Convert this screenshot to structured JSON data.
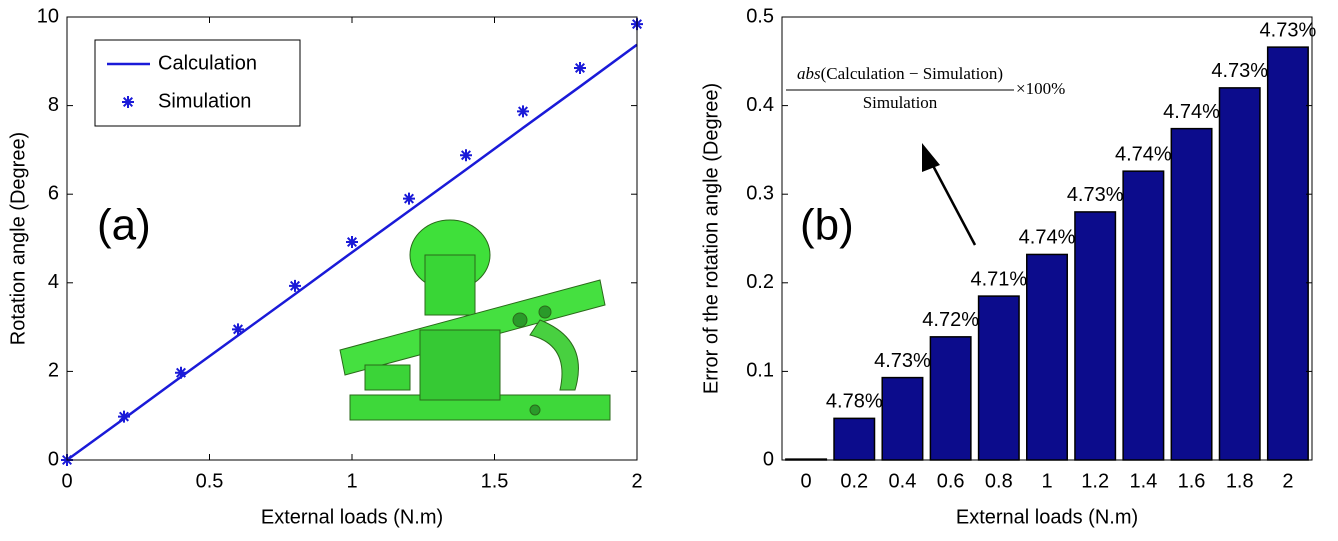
{
  "chart_data": [
    {
      "type": "line",
      "x_label": "External loads (N.m)",
      "y_label": "Rotation angle (Degree)",
      "annotation": "(a)",
      "x": [
        0,
        0.2,
        0.4,
        0.6,
        0.8,
        1,
        1.2,
        1.4,
        1.6,
        1.8,
        2
      ],
      "series": [
        {
          "name": "Calculation",
          "color": "#1a1ad8",
          "style": "line",
          "values": [
            0,
            0.933,
            1.877,
            2.811,
            3.745,
            4.688,
            5.62,
            6.554,
            7.496,
            8.43,
            9.374
          ]
        },
        {
          "name": "Simulation",
          "color": "#1a1ad8",
          "style": "star",
          "values": [
            0,
            0.98,
            1.97,
            2.95,
            3.93,
            4.92,
            5.9,
            6.88,
            7.87,
            8.85,
            9.84
          ]
        }
      ],
      "xlim": [
        0,
        2
      ],
      "xticks": [
        0,
        0.5,
        1,
        1.5,
        2
      ],
      "ylim": [
        0,
        10
      ],
      "yticks": [
        0,
        2,
        4,
        6,
        8,
        10
      ],
      "legend": "upper-left"
    },
    {
      "type": "bar",
      "x_label": "External loads (N.m)",
      "y_label": "Error of the rotation angle (Degree)",
      "annotation": "(b)",
      "categories": [
        "0",
        "0.2",
        "0.4",
        "0.6",
        "0.8",
        "1",
        "1.2",
        "1.4",
        "1.6",
        "1.8",
        "2"
      ],
      "values": [
        0.001,
        0.047,
        0.093,
        0.139,
        0.185,
        0.232,
        0.28,
        0.326,
        0.374,
        0.42,
        0.466
      ],
      "percent_labels": [
        null,
        "4.78%",
        "4.73%",
        "4.72%",
        "4.71%",
        "4.74%",
        "4.73%",
        "4.74%",
        "4.74%",
        "4.73%",
        "4.73%"
      ],
      "color": "#0c0c8c",
      "ylim": [
        0,
        0.5
      ],
      "yticks": [
        0,
        0.1,
        0.2,
        0.3,
        0.4,
        0.5
      ],
      "formula": {
        "function": "abs",
        "numerator": "(Calculation − Simulation)",
        "denominator": "Simulation",
        "factor": "×100%"
      }
    }
  ]
}
